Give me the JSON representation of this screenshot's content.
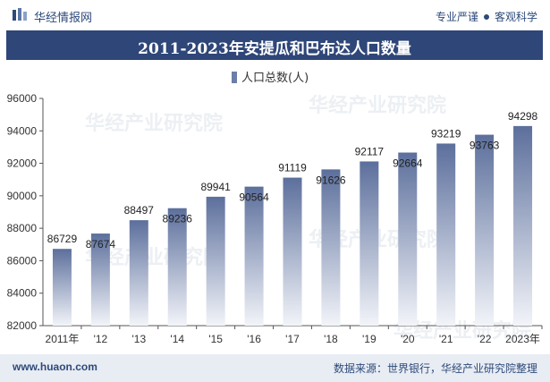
{
  "header": {
    "brand": "华经情报网",
    "slogan_left": "专业严谨",
    "slogan_right": "客观科学"
  },
  "watermark": "华经产业研究院",
  "chart_data": {
    "type": "bar",
    "title": "2011-2023年安提瓜和巴布达人口数量",
    "categories": [
      "2011年",
      "'12",
      "'13",
      "'14",
      "'15",
      "'16",
      "'17",
      "'18",
      "'19",
      "'20",
      "'21",
      "'22",
      "2023年"
    ],
    "series": [
      {
        "name": "人口总数(人)",
        "values": [
          86729,
          87674,
          88497,
          89236,
          89941,
          90564,
          91119,
          91626,
          92117,
          92664,
          93219,
          93763,
          94298
        ]
      }
    ],
    "y_ticks": [
      "82000",
      "84000",
      "86000",
      "88000",
      "90000",
      "92000",
      "94000",
      "96000"
    ],
    "ylim": [
      82000,
      96000
    ],
    "legend_position": "top-center",
    "grid": false,
    "colors": {
      "bar_top": "#5c6f9c",
      "bar_bottom": "#f2f4f9",
      "title_bg": "#2e4678"
    }
  },
  "footer": {
    "website": "www.huaon.com",
    "source": "数据来源：世界银行，华经产业研究院整理"
  }
}
